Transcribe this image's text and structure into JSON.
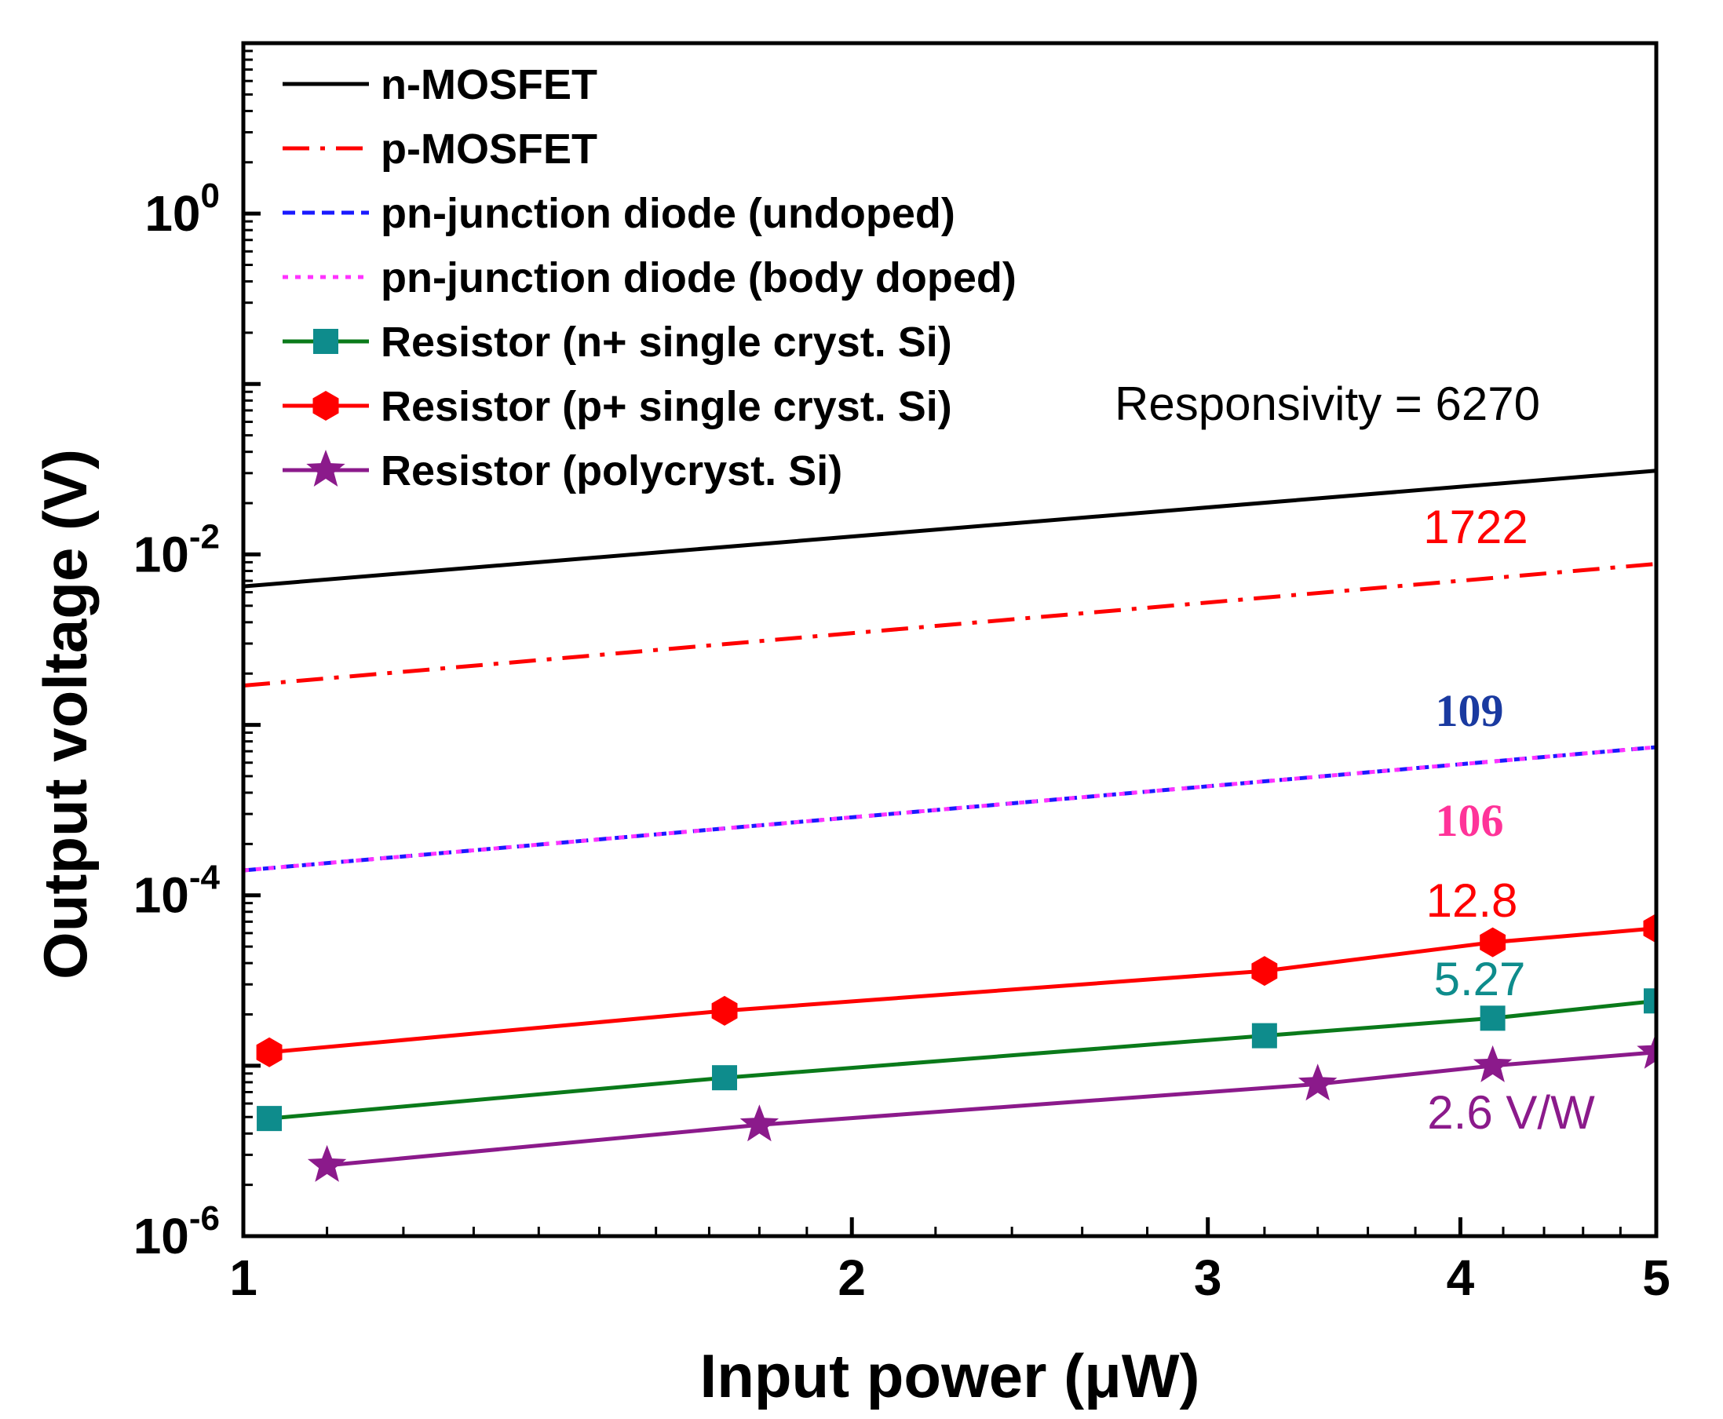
{
  "chart_data": {
    "type": "line",
    "xlabel": "Input power (μW)",
    "ylabel": "Output voltage (V)",
    "x_scale": "log",
    "y_scale": "log",
    "xlim": [
      1,
      5
    ],
    "ylim": [
      1e-06,
      10
    ],
    "x_ticks": [
      {
        "value": 1,
        "label": "1"
      },
      {
        "value": 2,
        "label": "2"
      },
      {
        "value": 3,
        "label": "3"
      },
      {
        "value": 4,
        "label": "4"
      },
      {
        "value": 5,
        "label": "5"
      }
    ],
    "y_ticks": [
      {
        "value": 1,
        "base": "10",
        "exp": "0"
      },
      {
        "value": 0.01,
        "base": "10",
        "exp": "-2"
      },
      {
        "value": 0.0001,
        "base": "10",
        "exp": "-4"
      },
      {
        "value": 1e-06,
        "base": "10",
        "exp": "-6"
      }
    ],
    "grid": false,
    "legend_position": "top-left",
    "series": [
      {
        "name": "n-MOSFET",
        "color": "#000000",
        "dash": "solid",
        "marker": "none",
        "x": [
          1,
          5
        ],
        "y": [
          0.0065,
          0.031
        ]
      },
      {
        "name": "p-MOSFET",
        "color": "#ff0000",
        "dash": "dashdot",
        "marker": "none",
        "x": [
          1,
          5
        ],
        "y": [
          0.0017,
          0.0088
        ]
      },
      {
        "name": "pn-junction diode (undoped)",
        "color": "#1a1aff",
        "dash": "dash",
        "marker": "none",
        "x": [
          1,
          5
        ],
        "y": [
          0.00014,
          0.00074
        ]
      },
      {
        "name": "pn-junction diode (body doped)",
        "color": "#ff33ff",
        "dash": "dot",
        "marker": "none",
        "x": [
          1,
          5
        ],
        "y": [
          0.00014,
          0.00074
        ]
      },
      {
        "name": "Resistor (n+ single cryst. Si)",
        "color": "#0a7a1a",
        "dash": "solid",
        "marker": "square",
        "marker_color": "#0e8c8c",
        "x": [
          1.03,
          1.73,
          3.2,
          4.15,
          5.0
        ],
        "y": [
          4.9e-06,
          8.5e-06,
          1.5e-05,
          1.9e-05,
          2.4e-05
        ]
      },
      {
        "name": "Resistor (p+ single cryst. Si)",
        "color": "#ff0000",
        "dash": "solid",
        "marker": "hexagon",
        "marker_color": "#ff0000",
        "x": [
          1.03,
          1.73,
          3.2,
          4.15,
          5.0
        ],
        "y": [
          1.2e-05,
          2.1e-05,
          3.6e-05,
          5.3e-05,
          6.4e-05
        ]
      },
      {
        "name": "Resistor (polycryst. Si)",
        "color": "#8b1a8b",
        "dash": "solid",
        "marker": "star",
        "marker_color": "#8b1a8b",
        "x": [
          1.1,
          1.8,
          3.4,
          4.15,
          5.0
        ],
        "y": [
          2.6e-06,
          4.5e-06,
          7.8e-06,
          1e-05,
          1.2e-05
        ]
      }
    ],
    "annotations": [
      {
        "text": "Responsivity = 6270",
        "color": "#000000"
      },
      {
        "text": "1722",
        "color": "#ff0000"
      },
      {
        "text": "109",
        "color": "#1a3aa0"
      },
      {
        "text": "106",
        "color": "#ff3399"
      },
      {
        "text": "12.8",
        "color": "#ff0000"
      },
      {
        "text": "5.27",
        "color": "#0e8c8c"
      },
      {
        "text": "2.6 V/W",
        "color": "#8b1a8b"
      }
    ]
  }
}
